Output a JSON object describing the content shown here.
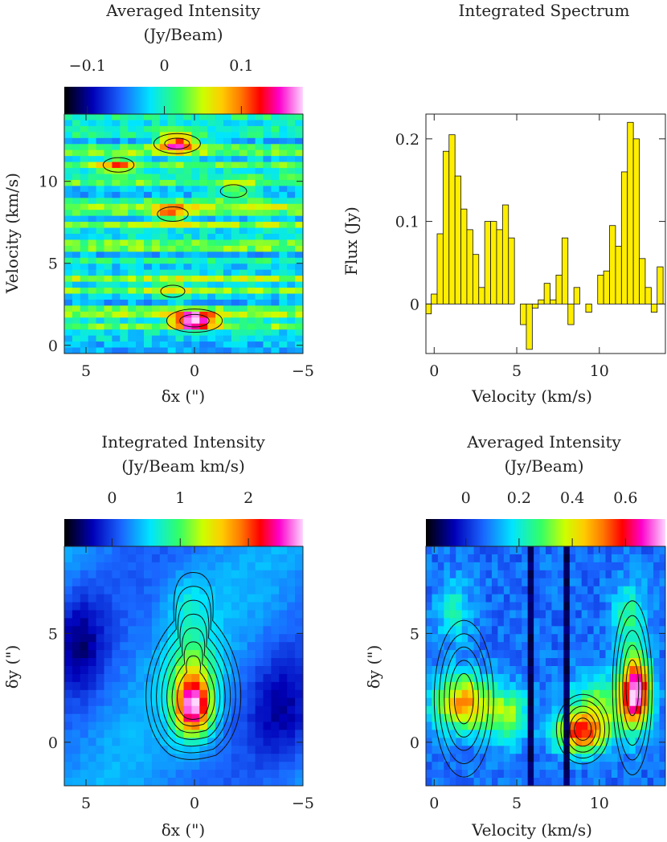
{
  "chart_data": [
    {
      "type": "heatmap",
      "name": "pv_averaged",
      "title_line1": "Averaged Intensity",
      "title_line2": "(Jy/Beam)",
      "xlabel": "δx (\")",
      "ylabel": "Velocity (km/s)",
      "xlim": [
        6,
        -5
      ],
      "ylim": [
        -0.5,
        14.1
      ],
      "xticks": [
        5,
        0,
        -5
      ],
      "xtick_labels": [
        "5",
        "0",
        "−5"
      ],
      "yticks": [
        0,
        5,
        10
      ],
      "ytick_labels": [
        "0",
        "5",
        "10"
      ],
      "colorbar": {
        "range": [
          -0.13,
          0.18
        ],
        "ticks": [
          -0.1,
          0,
          0.1
        ],
        "tick_labels": [
          "−0.1",
          "0",
          "0.1"
        ]
      },
      "peaks": [
        {
          "x": 0.0,
          "y": 1.5,
          "amp": 0.19
        },
        {
          "x": 0.8,
          "y": 12.3,
          "amp": 0.15
        },
        {
          "x": 1.0,
          "y": 8.0,
          "amp": 0.08
        },
        {
          "x": 3.5,
          "y": 11.0,
          "amp": 0.08
        },
        {
          "x": -1.8,
          "y": 9.4,
          "amp": 0.06
        },
        {
          "x": 1.0,
          "y": 3.3,
          "amp": 0.05
        }
      ]
    },
    {
      "type": "bar",
      "name": "integrated_spectrum",
      "title": "Integrated Spectrum",
      "xlabel": "Velocity (km/s)",
      "ylabel": "Flux (Jy)",
      "xlim": [
        -0.5,
        14
      ],
      "ylim": [
        -0.06,
        0.23
      ],
      "xticks": [
        0,
        5,
        10
      ],
      "xtick_labels": [
        "0",
        "5",
        "10"
      ],
      "yticks": [
        0,
        0.1,
        0.2
      ],
      "ytick_labels": [
        "0",
        "0.1",
        "0.2"
      ],
      "bin_width": 0.36,
      "x": [
        -0.36,
        0.0,
        0.36,
        0.72,
        1.08,
        1.44,
        1.8,
        2.16,
        2.52,
        2.88,
        3.24,
        3.6,
        3.96,
        4.32,
        4.68,
        5.04,
        5.4,
        5.76,
        6.12,
        6.48,
        6.84,
        7.2,
        7.56,
        7.92,
        8.28,
        8.64,
        9.0,
        9.36,
        9.72,
        10.08,
        10.44,
        10.8,
        11.16,
        11.52,
        11.88,
        12.24,
        12.6,
        12.96,
        13.32,
        13.68
      ],
      "values": [
        -0.012,
        0.012,
        0.085,
        0.185,
        0.205,
        0.155,
        0.115,
        0.09,
        0.06,
        0.02,
        0.1,
        0.1,
        0.09,
        0.12,
        0.08,
        0.0,
        -0.025,
        -0.055,
        -0.005,
        0.005,
        0.025,
        0.005,
        0.035,
        0.08,
        -0.025,
        0.02,
        0.0,
        -0.01,
        0.0,
        0.035,
        0.04,
        0.095,
        0.07,
        0.16,
        0.22,
        0.2,
        0.055,
        0.02,
        -0.01,
        0.045
      ]
    },
    {
      "type": "heatmap",
      "name": "integrated_map",
      "title_line1": "Integrated Intensity",
      "title_line2": "(Jy/Beam km/s)",
      "xlabel": "δx (\")",
      "ylabel": "δy (\")",
      "xlim": [
        6,
        -5
      ],
      "ylim": [
        -2,
        9
      ],
      "xticks": [
        5,
        0,
        -5
      ],
      "xtick_labels": [
        "5",
        "0",
        "−5"
      ],
      "yticks": [
        0,
        5
      ],
      "ytick_labels": [
        "0",
        "5"
      ],
      "colorbar": {
        "range": [
          -0.7,
          2.8
        ],
        "ticks": [
          0,
          1,
          2
        ],
        "tick_labels": [
          "0",
          "1",
          "2"
        ]
      }
    },
    {
      "type": "heatmap",
      "name": "pv_averaged_y",
      "title_line1": "Averaged Intensity",
      "title_line2": "(Jy/Beam)",
      "xlabel": "Velocity (km/s)",
      "ylabel": "δy (\")",
      "xlim": [
        -0.5,
        14
      ],
      "ylim": [
        -2,
        9
      ],
      "xticks": [
        0,
        5,
        10
      ],
      "xtick_labels": [
        "0",
        "5",
        "10"
      ],
      "yticks": [
        0,
        5
      ],
      "ytick_labels": [
        "0",
        "5"
      ],
      "colorbar": {
        "range": [
          -0.15,
          0.75
        ],
        "ticks": [
          0,
          0.2,
          0.4,
          0.6
        ],
        "tick_labels": [
          "0",
          "0.2",
          "0.4",
          "0.6"
        ]
      },
      "gap_velocities": [
        6.0,
        8.0
      ]
    }
  ]
}
